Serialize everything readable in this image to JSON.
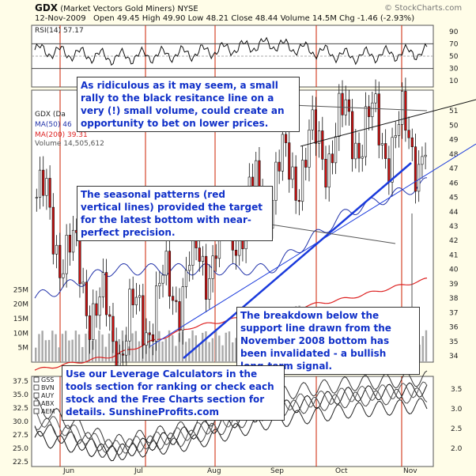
{
  "header": {
    "ticker": "GDX",
    "name": "(Market Vectors Gold Miners)",
    "exchange": "NYSE",
    "date": "12-Nov-2009",
    "ohlc": "Open 49.45  High 49.90  Low 48.21  Close 48.44  Volume 14.5M  Chg -1.46 (-2.93%)",
    "watermark": "© StockCharts.com"
  },
  "rsi_panel": {
    "label": "RSI(14) 57.17",
    "ticks": [
      "90",
      "70",
      "50",
      "30",
      "10"
    ]
  },
  "price_panel": {
    "legend": {
      "gdx": "GDX (Da",
      "ma50": "MA(50) 46",
      "ma200": "MA(200) 39.31",
      "volume": "Volume 14,505,612"
    },
    "right_ticks": [
      "51",
      "50",
      "49",
      "48",
      "47",
      "46",
      "45",
      "44",
      "43",
      "42",
      "41",
      "40",
      "39",
      "38",
      "37",
      "36",
      "35",
      "34"
    ],
    "volume_ticks": [
      "25M",
      "20M",
      "15M",
      "10M",
      "5M"
    ],
    "month_labels": [
      "Jun",
      "Jul",
      "Aug",
      "Sep",
      "Oct",
      "Nov"
    ]
  },
  "lower_panel": {
    "legend": [
      "GSS",
      "BVN",
      "AUY",
      "ABX",
      "AEM"
    ],
    "left_ticks": [
      "37.5",
      "35.0",
      "32.5",
      "30.0",
      "27.5",
      "25.0",
      "22.5"
    ],
    "right_ticks": [
      "3.5",
      "3.0",
      "2.5",
      "2.0"
    ]
  },
  "annotations": {
    "box1": "As ridiculous as it may seem, a small rally to the black resitance line on a very (!) small volume, could create an opportunity to bet on lower prices.",
    "box2": "The seasonal patterns (red vertical lines) provided the target for the latest bottom with near-perfect precision.",
    "box3": "The breakdown below the support line drawn from the November 2008 bottom has been invalidated - a bullish long-term signal.",
    "box4": "Use our Leverage Calculators in the tools section for ranking or check each stock and the Free Charts section for details. SunshineProfits.com"
  },
  "colors": {
    "background": "#fffde8",
    "panel": "#ffffff",
    "annotation_text": "#1030c8",
    "seasonal_lines": "#cc2200",
    "ma50": "#2233aa",
    "ma200": "#dd2222",
    "trendline": "#1a3adc",
    "volume": "#a8a8a8"
  },
  "chart_data": [
    {
      "type": "line",
      "title": "RSI(14) 57.17",
      "ylim": [
        0,
        100
      ],
      "levels": [
        30,
        50,
        70
      ],
      "x": [
        "Jun",
        "Jul",
        "Aug",
        "Sep",
        "Oct",
        "Nov"
      ],
      "series": [
        {
          "name": "RSI(14)",
          "values": [
            60,
            48,
            55,
            70,
            50,
            57
          ]
        }
      ]
    },
    {
      "type": "line",
      "ylim": [
        34,
        52
      ],
      "x": [
        "Jun",
        "Jul",
        "Aug",
        "Sep",
        "Oct",
        "Nov"
      ],
      "series": [
        {
          "name": "GDX",
          "values": [
            45,
            35,
            40,
            46,
            50,
            48.44
          ]
        },
        {
          "name": "MA(50)",
          "values": [
            38,
            40,
            40,
            40,
            44,
            46
          ]
        },
        {
          "name": "MA(200)",
          "values": [
            33,
            34,
            36,
            37,
            38,
            39.31
          ]
        }
      ],
      "volume_ylim": [
        0,
        30000000
      ]
    },
    {
      "type": "line",
      "ylim": [
        22.5,
        37.5
      ],
      "x": [
        "Jun",
        "Jul",
        "Aug",
        "Sep",
        "Oct",
        "Nov"
      ],
      "series": [
        {
          "name": "GSS",
          "values": [
            27,
            24,
            28,
            32,
            35,
            36
          ]
        },
        {
          "name": "BVN",
          "values": [
            33,
            26,
            29,
            35,
            37,
            38
          ]
        },
        {
          "name": "AUY",
          "values": [
            31,
            25,
            28,
            33,
            35,
            36
          ]
        },
        {
          "name": "ABX",
          "values": [
            29,
            24,
            26,
            30,
            32,
            33
          ]
        },
        {
          "name": "AEM",
          "values": [
            30,
            25,
            27,
            32,
            34,
            35
          ]
        }
      ]
    }
  ]
}
